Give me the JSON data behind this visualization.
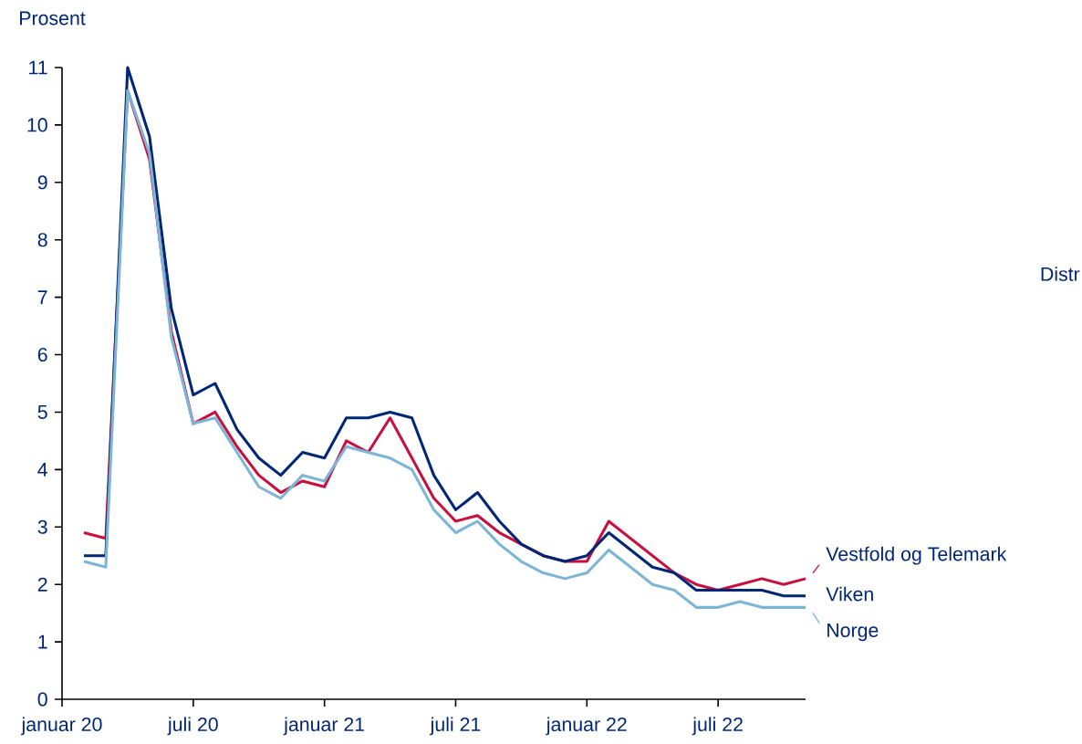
{
  "chart_data": {
    "type": "line",
    "ylabel": "Prosent",
    "x": [
      "2020-02",
      "2020-03",
      "2020-04",
      "2020-05",
      "2020-06",
      "2020-07",
      "2020-08",
      "2020-09",
      "2020-10",
      "2020-11",
      "2020-12",
      "2021-01",
      "2021-02",
      "2021-03",
      "2021-04",
      "2021-05",
      "2021-06",
      "2021-07",
      "2021-08",
      "2021-09",
      "2021-10",
      "2021-11",
      "2021-12",
      "2022-01",
      "2022-02",
      "2022-03",
      "2022-04",
      "2022-05",
      "2022-06",
      "2022-07",
      "2022-08",
      "2022-09",
      "2022-10",
      "2022-11"
    ],
    "xlim": [
      "2020-01",
      "2022-11"
    ],
    "xticks": [
      {
        "value": "2020-01",
        "label": "januar 20"
      },
      {
        "value": "2020-07",
        "label": "juli 20"
      },
      {
        "value": "2021-01",
        "label": "januar 21"
      },
      {
        "value": "2021-07",
        "label": "juli 21"
      },
      {
        "value": "2022-01",
        "label": "januar 22"
      },
      {
        "value": "2022-07",
        "label": "juli 22"
      }
    ],
    "ylim": [
      0,
      11
    ],
    "yticks": [
      0,
      1,
      2,
      3,
      4,
      5,
      6,
      7,
      8,
      9,
      10,
      11
    ],
    "series": [
      {
        "name": "Vestfold og Telemark",
        "color": "#c8103e",
        "values": [
          2.9,
          2.8,
          10.6,
          9.4,
          6.4,
          4.8,
          5.0,
          4.4,
          3.9,
          3.6,
          3.8,
          3.7,
          4.5,
          4.3,
          4.9,
          4.2,
          3.5,
          3.1,
          3.2,
          2.9,
          2.7,
          2.5,
          2.4,
          2.4,
          3.1,
          2.8,
          2.5,
          2.2,
          2.0,
          1.9,
          2.0,
          2.1,
          2.0,
          2.1
        ]
      },
      {
        "name": "Viken",
        "color": "#002776",
        "values": [
          2.5,
          2.5,
          11.0,
          9.8,
          6.8,
          5.3,
          5.5,
          4.7,
          4.2,
          3.9,
          4.3,
          4.2,
          4.9,
          4.9,
          5.0,
          4.9,
          3.9,
          3.3,
          3.6,
          3.1,
          2.7,
          2.5,
          2.4,
          2.5,
          2.9,
          2.6,
          2.3,
          2.2,
          1.9,
          1.9,
          1.9,
          1.9,
          1.8,
          1.8
        ]
      },
      {
        "name": "Norge",
        "color": "#7db5d6",
        "values": [
          2.4,
          2.3,
          10.6,
          9.5,
          6.3,
          4.8,
          4.9,
          4.3,
          3.7,
          3.5,
          3.9,
          3.8,
          4.4,
          4.3,
          4.2,
          4.0,
          3.3,
          2.9,
          3.1,
          2.7,
          2.4,
          2.2,
          2.1,
          2.2,
          2.6,
          2.3,
          2.0,
          1.9,
          1.6,
          1.6,
          1.7,
          1.6,
          1.6,
          1.6
        ]
      }
    ],
    "annotations": [
      "Distr"
    ]
  }
}
